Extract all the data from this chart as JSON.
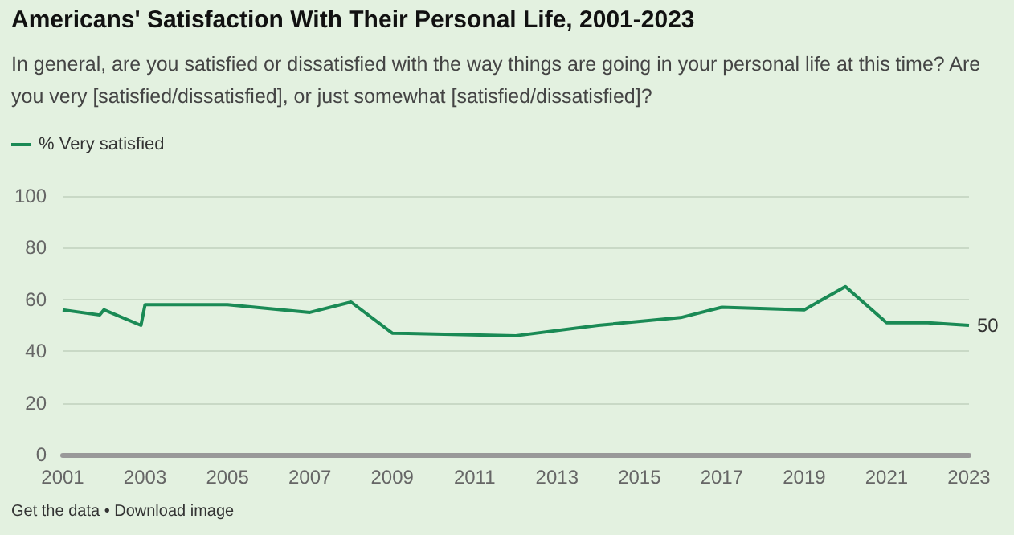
{
  "chart_data": {
    "type": "line",
    "title": "Americans' Satisfaction With Their Personal Life, 2001-2023",
    "subtitle": "In general, are you satisfied or dissatisfied with the way things are going in your personal life at this time? Are you very [satisfied/dissatisfied], or just somewhat [satisfied/dissatisfied]?",
    "x": [
      2001,
      2001.9,
      2002.0,
      2002.9,
      2003.0,
      2005,
      2007,
      2008,
      2009,
      2012,
      2014,
      2016,
      2017,
      2019,
      2020,
      2021,
      2022,
      2023
    ],
    "series": [
      {
        "name": "% Very satisfied",
        "color": "#1a8a55",
        "values": [
          56,
          54,
          56,
          50,
          58,
          58,
          55,
          59,
          47,
          46,
          50,
          53,
          57,
          56,
          65,
          51,
          51,
          50
        ],
        "value_labels": [
          null,
          null,
          null,
          null,
          null,
          null,
          null,
          null,
          null,
          null,
          null,
          null,
          null,
          null,
          null,
          null,
          null,
          "50"
        ]
      }
    ],
    "xlim": [
      2001,
      2023
    ],
    "xticks": [
      2001,
      2003,
      2005,
      2007,
      2009,
      2011,
      2013,
      2015,
      2017,
      2019,
      2021,
      2023
    ],
    "ylim": [
      0,
      100
    ],
    "yticks": [
      0,
      20,
      40,
      60,
      80,
      100
    ],
    "grid": "y",
    "legend": "top left",
    "marker": "none",
    "line_style": "solid",
    "annotations": [
      "Get the data • Download image"
    ]
  }
}
